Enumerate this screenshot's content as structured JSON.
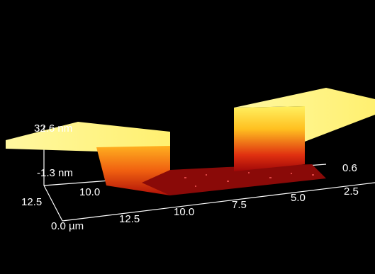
{
  "axes": {
    "z_max": "32.6 nm",
    "z_min": "-1.3 nm",
    "y_ticks": [
      "12.5",
      "10.0"
    ],
    "x_ticks": [
      "12.5",
      "10.0",
      "7.5",
      "5.0",
      "2.5"
    ],
    "right_label": "0.6",
    "origin_label": "0.0 µm"
  }
}
